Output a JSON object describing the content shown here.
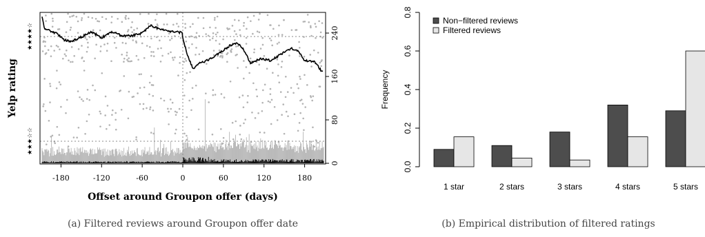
{
  "charts": [
    {
      "caption": "(a) Filtered reviews around Groupon offer date",
      "type": "scatter",
      "xlabel": "Offset around Groupon offer (days)",
      "ylabel": "Yelp rating",
      "x_ticks": [
        "-180",
        "-120",
        "-60",
        "0",
        "60",
        "120",
        "180"
      ],
      "y_right_ticks": [
        "0",
        "80",
        "160",
        "240"
      ],
      "y_left_star_labels": [
        "★★★☆☆",
        "★★★★☆"
      ],
      "colors": {
        "points": "#b3b3b3",
        "line": "#000000",
        "bars_total": "#aaaaaa",
        "bars_filtered": "#000000"
      }
    },
    {
      "caption": "(b) Empirical distribution of filtered ratings",
      "type": "bar",
      "ylabel": "Frequency",
      "ylim": [
        0,
        0.8
      ],
      "y_ticks": [
        "0.0",
        "0.2",
        "0.4",
        "0.6",
        "0.8"
      ],
      "categories": [
        "1 star",
        "2 stars",
        "3 stars",
        "4 stars",
        "5 stars"
      ],
      "series": [
        {
          "name": "Non−filtered reviews",
          "color": "#4d4d4d",
          "values": [
            0.09,
            0.11,
            0.18,
            0.32,
            0.29
          ]
        },
        {
          "name": "Filtered reviews",
          "color": "#e6e6e6",
          "values": [
            0.155,
            0.045,
            0.035,
            0.155,
            0.6
          ]
        }
      ]
    }
  ]
}
